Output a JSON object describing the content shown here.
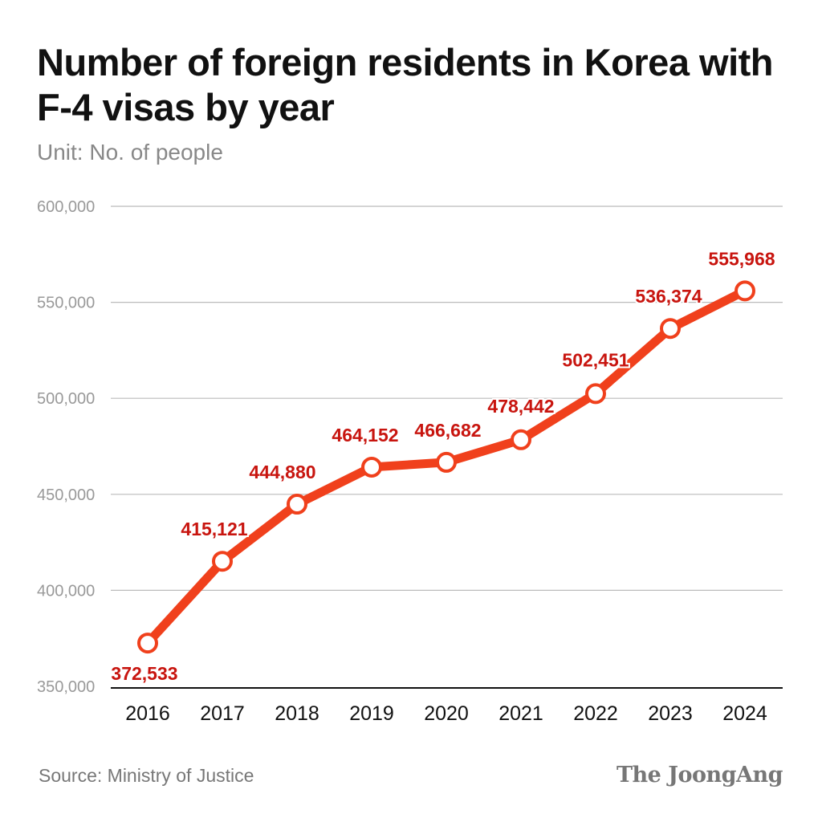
{
  "title": "Number of foreign residents in Korea with F-4 visas by year",
  "subtitle": "Unit: No. of people",
  "source": "Source: Ministry of Justice",
  "logo": "The JoongAng",
  "colors": {
    "line": "#f0401c",
    "label": "#c8150f",
    "grid": "#bbbbbb",
    "axis": "#111111"
  },
  "chart_data": {
    "type": "line",
    "title": "Number of foreign residents in Korea with F-4 visas by year",
    "ylabel": "Unit: No. of people",
    "xlabel": "",
    "x": [
      "2016",
      "2017",
      "2018",
      "2019",
      "2020",
      "2021",
      "2022",
      "2023",
      "2024"
    ],
    "values": [
      372533,
      415121,
      444880,
      464152,
      466682,
      478442,
      502451,
      536374,
      555968
    ],
    "data_labels": [
      "372,533",
      "415,121",
      "444,880",
      "464,152",
      "466,682",
      "478,442",
      "502,451",
      "536,374",
      "555,968"
    ],
    "ylim": [
      350000,
      600000
    ],
    "yticks": [
      350000,
      400000,
      450000,
      500000,
      550000,
      600000
    ],
    "ytick_labels": [
      "350,000",
      "400,000",
      "450,000",
      "500,000",
      "550,000",
      "600,000"
    ],
    "grid": true,
    "legend": "none"
  }
}
